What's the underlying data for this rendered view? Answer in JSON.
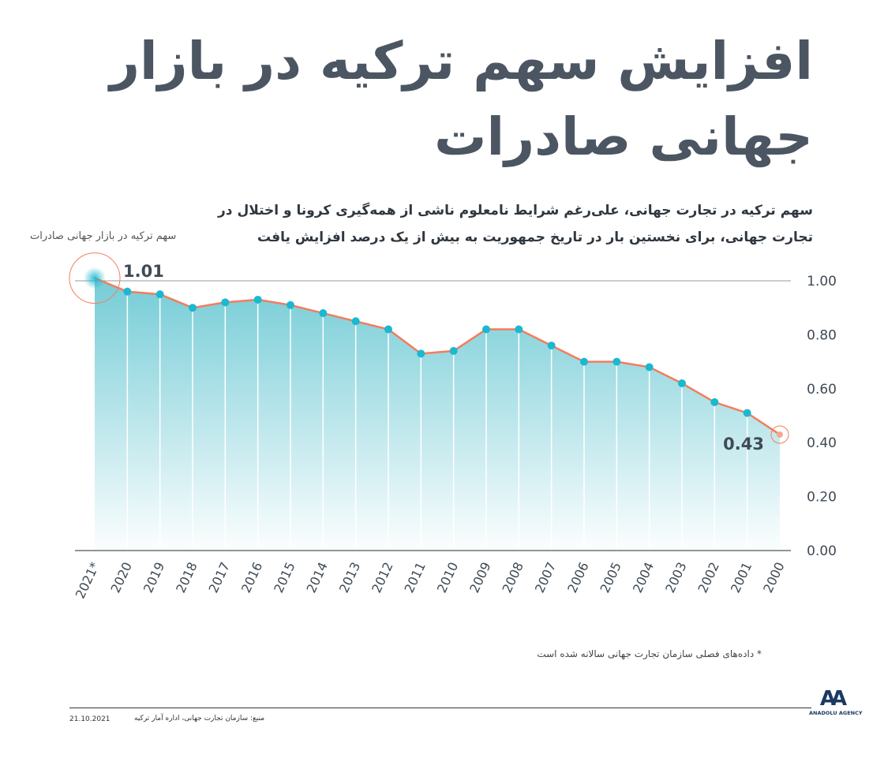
{
  "title": "افزایش سهم ترکیه در بازار جهانی صادرات",
  "subtitle": "سهم ترکیه در تجارت جهانی، علی‌رغم شرایط نامعلوم ناشی از همه‌گیری کرونا و اختلال در تجارت جهانی، برای نخستین بار در تاریخ جمهوریت به بیش از یک درصد افزایش یافت",
  "note": "* داده‌های فصلی سازمان تجارت جهانی سالانه شده است",
  "footer": {
    "date": "21.10.2021",
    "source": "منبع: سازمان تجارت جهانی، اداره آمار ترکیه",
    "logo_mark": "AA",
    "logo_name": "ANADOLU AGENCY"
  },
  "colors": {
    "line": "#f47c5c",
    "dot": "#1bb8d0",
    "fill": "#5cc3cf",
    "title": "#4b5662"
  },
  "chart_data": {
    "type": "area",
    "ylabel": "سهم ترکیه در بازار جهانی صادرات",
    "categories": [
      "2021*",
      "2020",
      "2019",
      "2018",
      "2017",
      "2016",
      "2015",
      "2014",
      "2013",
      "2012",
      "2011",
      "2010",
      "2009",
      "2008",
      "2007",
      "2006",
      "2005",
      "2004",
      "2003",
      "2002",
      "2001",
      "2000"
    ],
    "values": [
      1.01,
      0.96,
      0.95,
      0.9,
      0.92,
      0.93,
      0.91,
      0.88,
      0.85,
      0.82,
      0.73,
      0.74,
      0.82,
      0.82,
      0.76,
      0.7,
      0.7,
      0.68,
      0.62,
      0.55,
      0.51,
      0.43
    ],
    "yticks": [
      "0.00",
      "0.20",
      "0.40",
      "0.60",
      "0.80",
      "1.00"
    ],
    "ylim": [
      0,
      1.0
    ],
    "annotations": {
      "first": "1.01",
      "last": "0.43"
    },
    "grid": "only at 0.00 and 1.00"
  }
}
